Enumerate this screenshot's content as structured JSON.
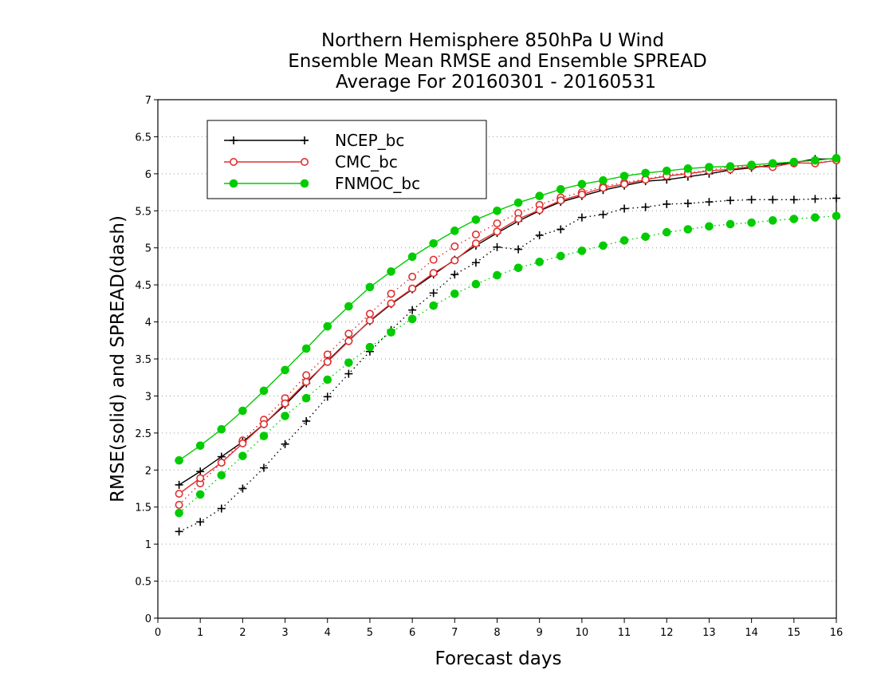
{
  "chart_data": {
    "type": "line",
    "title_lines": [
      "Northern Hemisphere 850hPa U Wind",
      "Ensemble Mean RMSE and Ensemble SPREAD",
      "Average For 20160301 - 20160531"
    ],
    "xlabel": "Forecast days",
    "ylabel": "RMSE(solid) and SPREAD(dash)",
    "xlim": [
      0,
      16
    ],
    "ylim": [
      0,
      7
    ],
    "xticks": [
      "0",
      "1",
      "2",
      "3",
      "4",
      "5",
      "6",
      "7",
      "8",
      "9",
      "10",
      "11",
      "12",
      "13",
      "14",
      "15",
      "16"
    ],
    "yticks": [
      "0",
      "0.5",
      "1",
      "1.5",
      "2",
      "2.5",
      "3",
      "3.5",
      "4",
      "4.5",
      "5",
      "5.5",
      "6",
      "6.5",
      "7"
    ],
    "grid": true,
    "legend_position": "top-left",
    "x": [
      0.5,
      1,
      1.5,
      2,
      2.5,
      3,
      3.5,
      4,
      4.5,
      5,
      5.5,
      6,
      6.5,
      7,
      7.5,
      8,
      8.5,
      9,
      9.5,
      10,
      10.5,
      11,
      11.5,
      12,
      12.5,
      13,
      13.5,
      14,
      14.5,
      15,
      15.5,
      16
    ],
    "series": [
      {
        "name": "NCEP_bc",
        "color": "#000000",
        "marker": "plus",
        "rmse": [
          1.8,
          1.98,
          2.18,
          2.38,
          2.62,
          2.88,
          3.17,
          3.47,
          3.75,
          4.01,
          4.24,
          4.44,
          4.64,
          4.84,
          5.03,
          5.2,
          5.36,
          5.5,
          5.62,
          5.7,
          5.78,
          5.84,
          5.9,
          5.92,
          5.96,
          6.0,
          6.05,
          6.08,
          6.12,
          6.15,
          6.2,
          6.2
        ],
        "spread": [
          1.17,
          1.3,
          1.48,
          1.75,
          2.03,
          2.35,
          2.66,
          2.99,
          3.3,
          3.6,
          3.89,
          4.16,
          4.39,
          4.64,
          4.8,
          5.01,
          4.98,
          5.17,
          5.25,
          5.41,
          5.45,
          5.53,
          5.55,
          5.59,
          5.6,
          5.62,
          5.64,
          5.65,
          5.65,
          5.65,
          5.66,
          5.67
        ]
      },
      {
        "name": "CMC_bc",
        "color": "#e03030",
        "marker": "open-circle",
        "rmse": [
          1.68,
          1.89,
          2.1,
          2.36,
          2.62,
          2.9,
          3.19,
          3.46,
          3.74,
          4.02,
          4.25,
          4.45,
          4.66,
          4.83,
          5.06,
          5.22,
          5.39,
          5.51,
          5.64,
          5.72,
          5.81,
          5.86,
          5.92,
          5.97,
          6.0,
          6.04,
          6.06,
          6.1,
          6.09,
          6.15,
          6.14,
          6.18
        ],
        "spread": [
          1.53,
          1.82,
          2.1,
          2.4,
          2.68,
          2.97,
          3.28,
          3.56,
          3.84,
          4.11,
          4.38,
          4.61,
          4.84,
          5.02,
          5.18,
          5.33,
          5.47,
          5.58,
          5.68,
          5.75,
          5.83,
          5.88,
          5.93,
          5.98,
          6.01,
          6.05,
          6.09,
          6.1,
          6.12,
          6.14,
          6.15,
          6.18
        ]
      },
      {
        "name": "FNMOC_bc",
        "color": "#00cc00",
        "marker": "filled-circle",
        "rmse": [
          2.13,
          2.33,
          2.55,
          2.8,
          3.07,
          3.35,
          3.64,
          3.94,
          4.21,
          4.47,
          4.68,
          4.88,
          5.06,
          5.23,
          5.38,
          5.5,
          5.61,
          5.7,
          5.79,
          5.86,
          5.91,
          5.97,
          6.01,
          6.04,
          6.07,
          6.09,
          6.1,
          6.12,
          6.14,
          6.16,
          6.18,
          6.21
        ],
        "spread": [
          1.42,
          1.67,
          1.93,
          2.19,
          2.46,
          2.73,
          2.97,
          3.22,
          3.45,
          3.66,
          3.86,
          4.04,
          4.22,
          4.38,
          4.51,
          4.63,
          4.73,
          4.81,
          4.89,
          4.96,
          5.03,
          5.1,
          5.15,
          5.21,
          5.25,
          5.29,
          5.32,
          5.34,
          5.37,
          5.39,
          5.41,
          5.43
        ]
      }
    ]
  }
}
